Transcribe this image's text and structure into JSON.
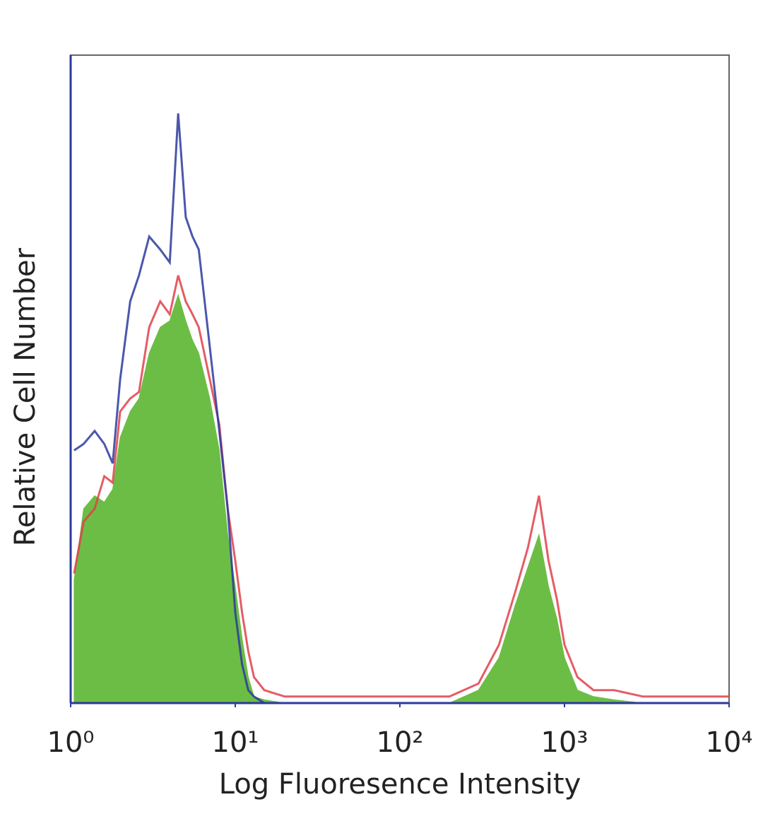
{
  "chart_data": {
    "type": "histogram-overlay",
    "x_label": "Log Fluoresence Intensity",
    "y_label": "Relative Cell Number",
    "x_scale": "log",
    "xlim": [
      1,
      10000
    ],
    "xticks": [
      {
        "value": 1,
        "label": "10⁰"
      },
      {
        "value": 10,
        "label": "10¹"
      },
      {
        "value": 100,
        "label": "10²"
      },
      {
        "value": 1000,
        "label": "10³"
      },
      {
        "value": 10000,
        "label": "10⁴"
      }
    ],
    "ylim": [
      0,
      100
    ],
    "x": [
      1.05,
      1.2,
      1.4,
      1.6,
      1.8,
      2,
      2.3,
      2.6,
      3,
      3.5,
      4,
      4.5,
      5,
      5.5,
      6,
      7,
      8,
      9,
      10,
      11,
      12,
      13,
      15,
      20,
      50,
      100,
      200,
      300,
      400,
      500,
      600,
      700,
      800,
      900,
      1000,
      1200,
      1500,
      2000,
      3000,
      6000,
      10000
    ],
    "series": [
      {
        "color": "#6cbd45",
        "filled": true,
        "values": [
          19,
          30,
          32,
          31,
          33,
          41,
          45,
          47,
          54,
          58,
          59,
          63,
          59,
          56,
          54,
          47,
          39,
          26,
          18,
          10,
          4,
          1,
          0.5,
          0,
          0,
          0,
          0,
          2,
          7,
          15,
          21,
          26,
          18,
          13,
          7,
          2,
          1,
          0.5,
          0,
          0,
          0
        ]
      },
      {
        "color": "#e0404a",
        "filled": false,
        "values": [
          20,
          28,
          30,
          35,
          34,
          45,
          47,
          48,
          58,
          62,
          60,
          66,
          62,
          60,
          58,
          50,
          43,
          30,
          22,
          14,
          8,
          4,
          2,
          1,
          1,
          1,
          1,
          3,
          9,
          17,
          24,
          32,
          22,
          16,
          9,
          4,
          2,
          2,
          1,
          1,
          1
        ]
      },
      {
        "color": "#2b3a9c",
        "filled": false,
        "values": [
          39,
          40,
          42,
          40,
          37,
          50,
          62,
          66,
          72,
          70,
          68,
          91,
          75,
          72,
          70,
          55,
          42,
          30,
          14,
          6,
          2,
          1,
          0,
          0,
          0,
          0,
          0,
          0,
          0,
          0,
          0,
          0,
          0,
          0,
          0,
          0,
          0,
          0,
          0,
          0,
          0
        ]
      }
    ]
  }
}
